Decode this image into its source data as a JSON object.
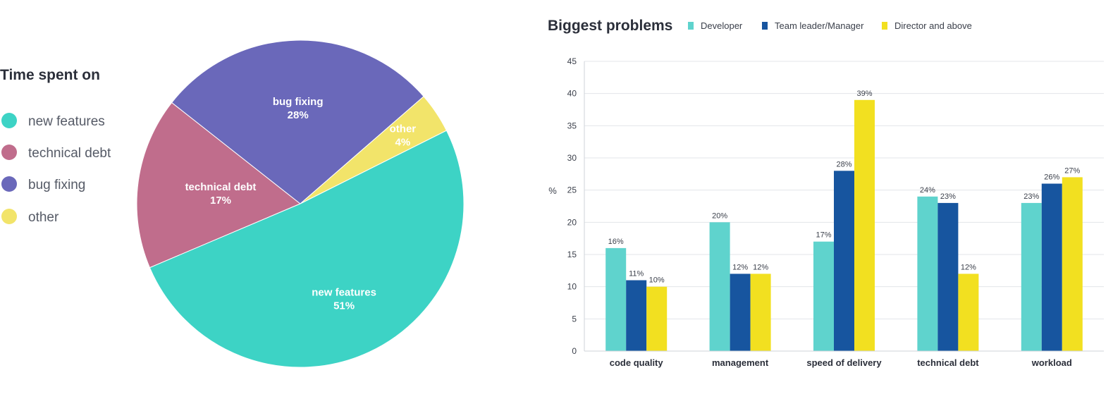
{
  "chart_data": [
    {
      "type": "pie",
      "title": "Time spent on",
      "categories": [
        "new features",
        "technical debt",
        "bug fixing",
        "other"
      ],
      "values": [
        51,
        17,
        28,
        4
      ],
      "data_labels": [
        "51%",
        "17%",
        "28%",
        "4%"
      ],
      "colors": [
        "#3dd3c5",
        "#c06d8c",
        "#6a68ba",
        "#f2e46a"
      ],
      "legend_position": "left"
    },
    {
      "type": "bar",
      "title": "Biggest problems",
      "categories": [
        "code quality",
        "management",
        "speed of delivery",
        "technical debt",
        "workload"
      ],
      "series": [
        {
          "name": "Developer",
          "color": "#5fd3cd",
          "values": [
            16,
            20,
            17,
            24,
            23
          ],
          "labels": [
            "16%",
            "20%",
            "17%",
            "24%",
            "23%"
          ]
        },
        {
          "name": "Team leader/Manager",
          "color": "#17559f",
          "values": [
            11,
            12,
            28,
            23,
            26
          ],
          "labels": [
            "11%",
            "12%",
            "28%",
            "23%",
            "26%"
          ]
        },
        {
          "name": "Director and above",
          "color": "#f2e020",
          "values": [
            10,
            12,
            39,
            12,
            27
          ],
          "labels": [
            "10%",
            "12%",
            "39%",
            "12%",
            "27%"
          ]
        }
      ],
      "xlabel": "",
      "ylabel": "%",
      "ylim": [
        0,
        45
      ],
      "yticks": [
        0,
        5,
        10,
        15,
        20,
        25,
        30,
        35,
        40,
        45
      ],
      "legend_position": "top",
      "grid": true
    }
  ]
}
